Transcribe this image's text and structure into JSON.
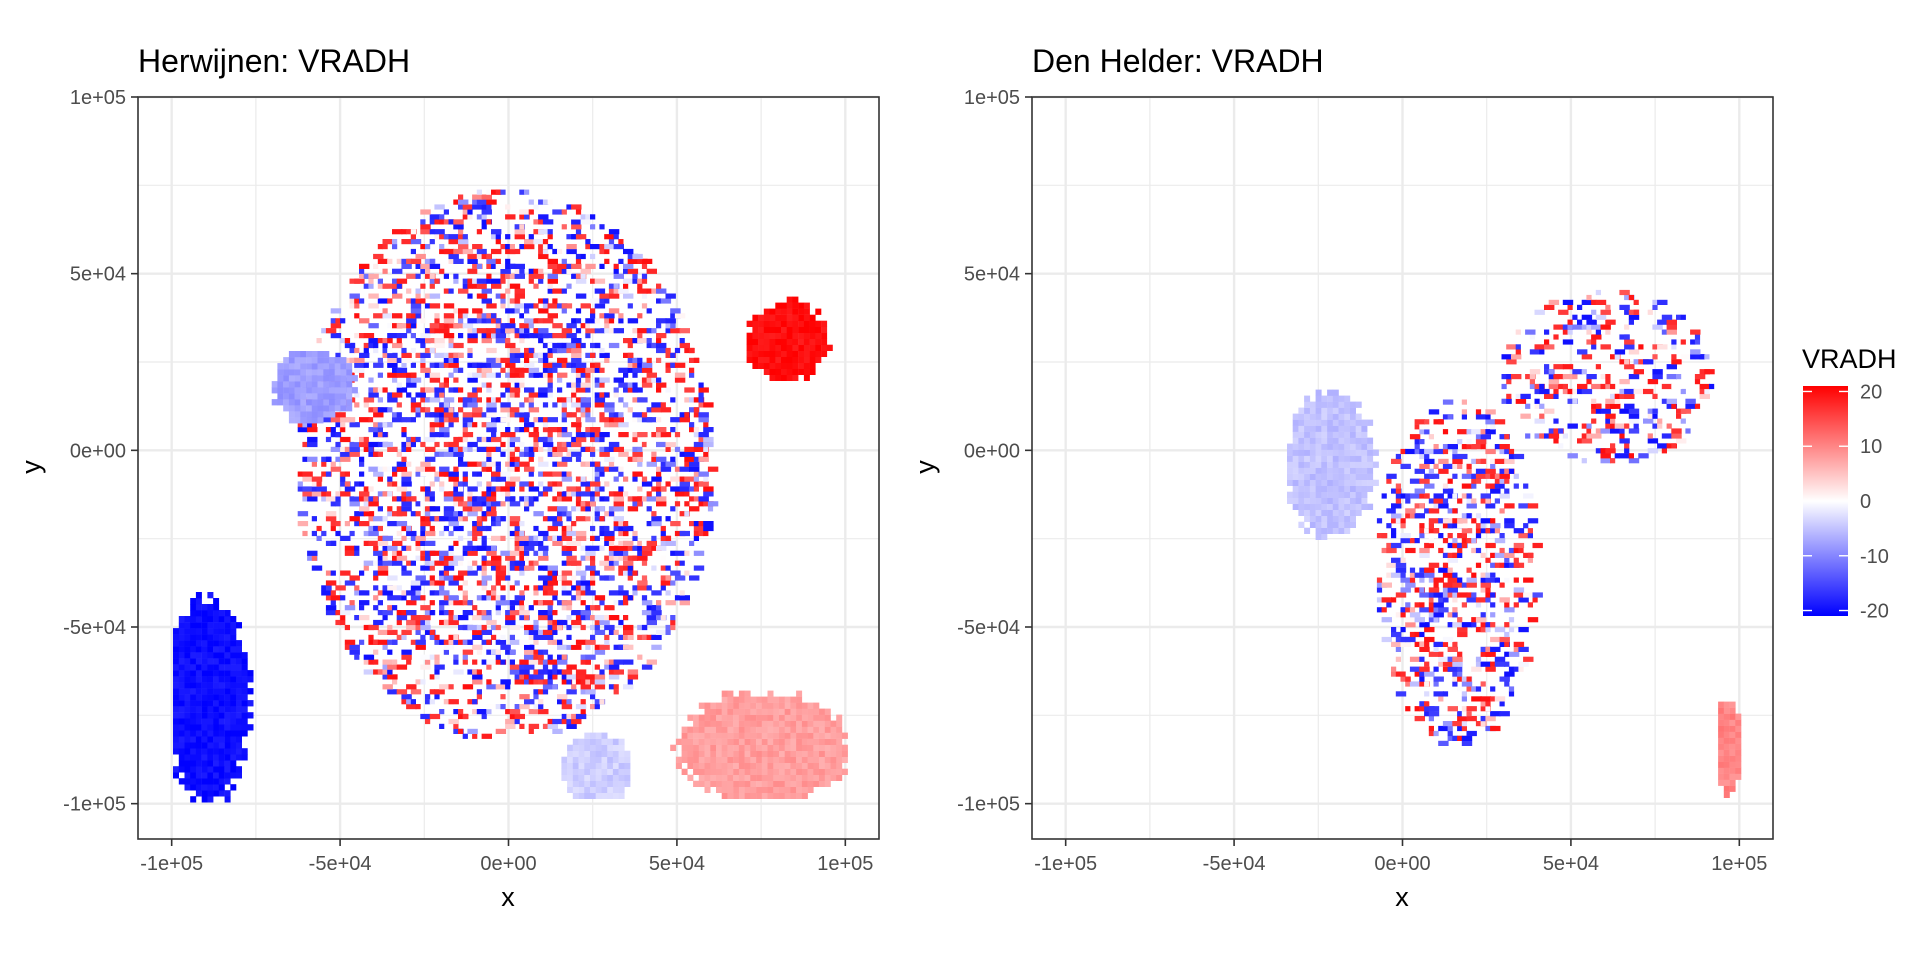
{
  "chart_data": [
    {
      "type": "heatmap",
      "title": "Herwijnen: VRADH",
      "xlabel": "x",
      "ylabel": "y",
      "xlim": [
        -110000,
        110000
      ],
      "ylim": [
        -110000,
        100000
      ],
      "x_ticks": [
        -100000,
        -50000,
        0,
        50000,
        100000
      ],
      "x_tick_labels": [
        "-1e+05",
        "-5e+04",
        "0e+00",
        "5e+04",
        "1e+05"
      ],
      "y_ticks": [
        -100000,
        -50000,
        0,
        50000,
        100000
      ],
      "y_tick_labels": [
        "-1e+05",
        "-5e+04",
        "0e+00",
        "5e+04",
        "1e+05"
      ],
      "grid": true,
      "value_field": "VRADH",
      "regions": [
        {
          "label": "central radial noise",
          "kind": "noise",
          "cx": -2000,
          "cy": -5000,
          "rx": 62000,
          "ry": 78000,
          "density": 0.42,
          "value_range": [
            -20,
            20
          ]
        },
        {
          "label": "west cluster",
          "kind": "smooth",
          "cx": -59000,
          "cy": 17000,
          "rx": 13000,
          "ry": 11000,
          "value": -8
        },
        {
          "label": "south-west cluster",
          "kind": "smooth",
          "cx": -90000,
          "cy": -72000,
          "rx": 13000,
          "ry": 31000,
          "value": -20
        },
        {
          "label": "north-east cluster",
          "kind": "smooth",
          "cx": 82000,
          "cy": 30000,
          "rx": 13000,
          "ry": 12000,
          "value": 20
        },
        {
          "label": "south-east cluster",
          "kind": "smooth",
          "cx": 75000,
          "cy": -85000,
          "rx": 27000,
          "ry": 17000,
          "value": 8
        },
        {
          "label": "south cluster",
          "kind": "smooth",
          "cx": 25000,
          "cy": -91000,
          "rx": 11000,
          "ry": 11000,
          "value": -4
        }
      ]
    },
    {
      "type": "heatmap",
      "title": "Den Helder: VRADH",
      "xlabel": "x",
      "ylabel": "y",
      "xlim": [
        -110000,
        110000
      ],
      "ylim": [
        -110000,
        100000
      ],
      "x_ticks": [
        -100000,
        -50000,
        0,
        50000,
        100000
      ],
      "x_tick_labels": [
        "-1e+05",
        "-5e+04",
        "0e+00",
        "5e+04",
        "1e+05"
      ],
      "y_ticks": [
        -100000,
        -50000,
        0,
        50000,
        100000
      ],
      "y_tick_labels": [
        "-1e+05",
        "-5e+04",
        "0e+00",
        "5e+04",
        "1e+05"
      ],
      "grid": true,
      "value_field": "VRADH",
      "regions": [
        {
          "label": "western smooth cluster",
          "kind": "smooth",
          "cx": -22000,
          "cy": -5000,
          "rx": 14000,
          "ry": 22000,
          "value": -5
        },
        {
          "label": "central noise",
          "kind": "noise",
          "cx": 15000,
          "cy": -35000,
          "rx": 24000,
          "ry": 50000,
          "density": 0.38,
          "value_range": [
            -20,
            20
          ]
        },
        {
          "label": "north-east noise",
          "kind": "noise",
          "cx": 60000,
          "cy": 20000,
          "rx": 32000,
          "ry": 25000,
          "density": 0.3,
          "value_range": [
            -20,
            20
          ]
        },
        {
          "label": "east edge cluster",
          "kind": "smooth",
          "cx": 96000,
          "cy": -85000,
          "rx": 4000,
          "ry": 15000,
          "value": 10
        }
      ]
    }
  ],
  "legend": {
    "title": "VRADH",
    "ticks": [
      20,
      10,
      0,
      -10,
      -20
    ],
    "tick_labels": [
      "20",
      "10",
      "0",
      "-10",
      "-20"
    ],
    "range": [
      -21,
      21
    ],
    "colors": {
      "low": "#0000ff",
      "mid": "#ffffff",
      "high": "#ff0000"
    }
  },
  "colors": {
    "background": "#ffffff",
    "grid": "#ebebeb",
    "panel_border": "#333333",
    "low": "#0000ff",
    "mid": "#ffffff",
    "high": "#ff0000"
  }
}
